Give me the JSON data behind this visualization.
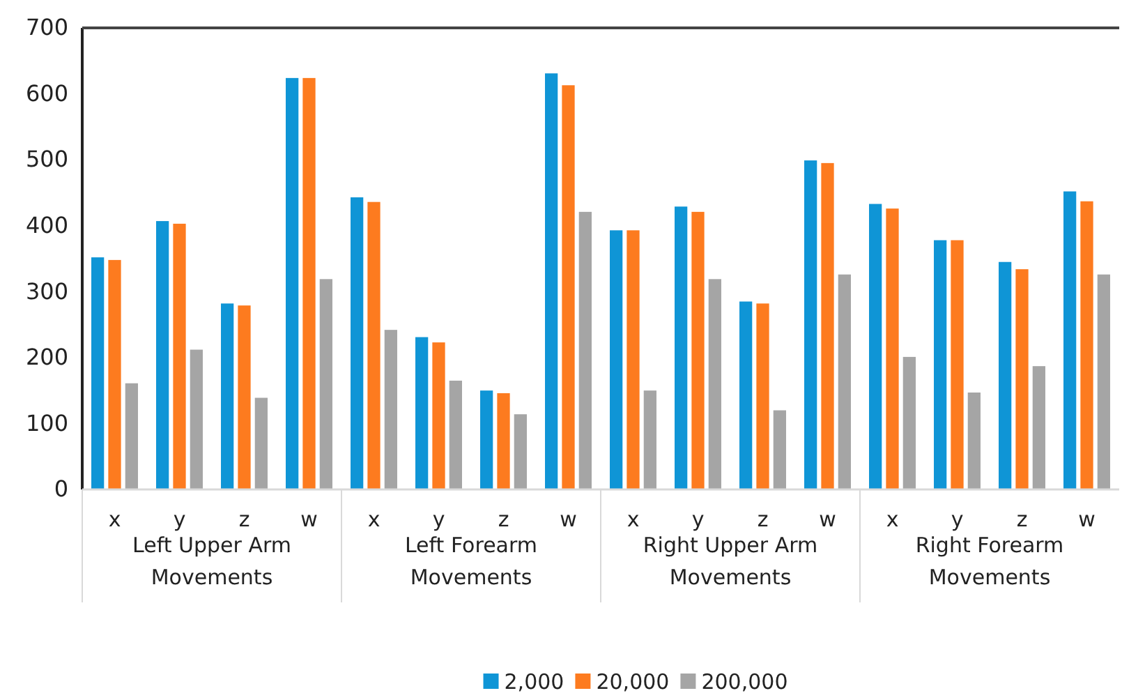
{
  "chart_data": {
    "type": "bar",
    "categories": [
      "x",
      "y",
      "z",
      "w",
      "x",
      "y",
      "z",
      "w",
      "x",
      "y",
      "z",
      "w",
      "x",
      "y",
      "z",
      "w"
    ],
    "series": [
      {
        "name": "2,000",
        "color": "#0f95d6",
        "values": [
          352,
          407,
          282,
          624,
          443,
          231,
          150,
          631,
          393,
          429,
          285,
          499,
          433,
          378,
          345,
          452
        ]
      },
      {
        "name": "20,000",
        "color": "#fd7b1f",
        "values": [
          348,
          403,
          279,
          624,
          436,
          223,
          146,
          613,
          393,
          421,
          282,
          495,
          426,
          378,
          334,
          437
        ]
      },
      {
        "name": "200,000",
        "color": "#a5a5a5",
        "values": [
          161,
          212,
          139,
          319,
          242,
          165,
          114,
          421,
          150,
          319,
          120,
          326,
          201,
          147,
          187,
          326
        ]
      }
    ],
    "annotations": [
      "Left Upper Arm Movements",
      "Left Forearm Movements",
      "Right Upper Arm Movements",
      "Right Forearm Movements"
    ],
    "ylim": [
      0,
      700
    ],
    "yticks": [
      0,
      100,
      200,
      300,
      400,
      500,
      600,
      700
    ],
    "grid": false,
    "legend": "bottom"
  }
}
